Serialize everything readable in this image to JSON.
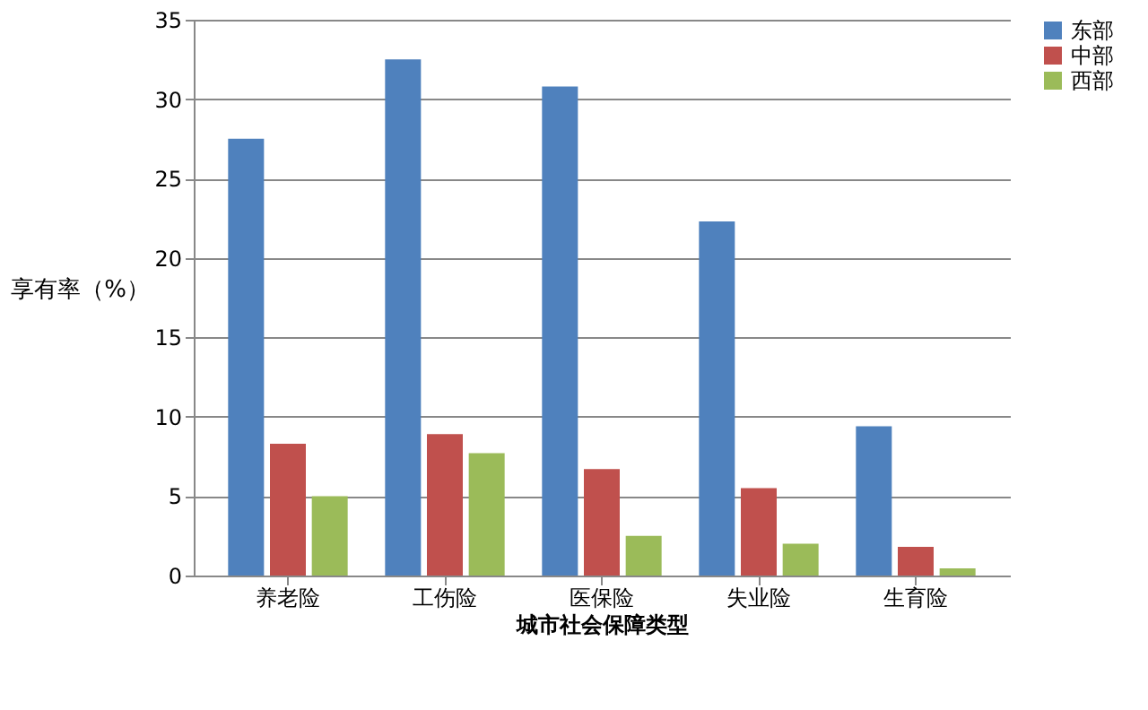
{
  "chart_data": {
    "type": "bar",
    "xlabel": "城市社会保障类型",
    "ylabel": "享有率（%）",
    "categories": [
      "养老险",
      "工伤险",
      "医保险",
      "失业险",
      "生育险"
    ],
    "series": [
      {
        "name": "东部",
        "color": "#4f81bd",
        "values": [
          27.5,
          32.5,
          30.8,
          22.3,
          9.4
        ]
      },
      {
        "name": "中部",
        "color": "#c0504d",
        "values": [
          8.3,
          8.9,
          6.7,
          5.5,
          1.8
        ]
      },
      {
        "name": "西部",
        "color": "#9bbb59",
        "values": [
          5.0,
          7.7,
          2.5,
          2.0,
          0.45
        ]
      }
    ],
    "ylim": [
      0,
      35
    ],
    "yticks": [
      0,
      5,
      10,
      15,
      20,
      25,
      30,
      35
    ],
    "grid": "y",
    "legend": "right"
  }
}
